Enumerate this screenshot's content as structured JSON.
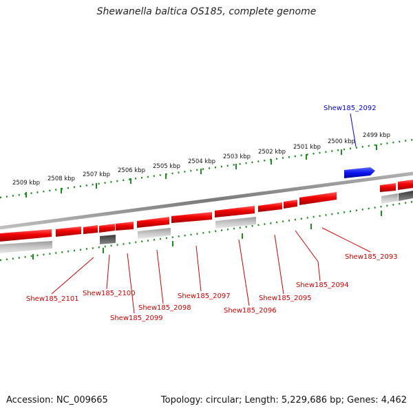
{
  "title": "Shewanella baltica OS185, complete genome",
  "footer": {
    "accession": "Accession: NC_009665",
    "summary": "Topology: circular; Length: 5,229,686 bp; Genes: 4,462"
  },
  "colors": {
    "forward_gene": "#e00000",
    "reverse_gene": "#e00000",
    "highlight_gene": "#0a14e0",
    "ticks": "#1f8a1f",
    "backbone": "#8a8a8a"
  },
  "scale_labels": [
    "2509 kbp",
    "2508 kbp",
    "2507 kbp",
    "2506 kbp",
    "2505 kbp",
    "2504 kbp",
    "2503 kbp",
    "2502 kbp",
    "2501 kbp",
    "2500 kbp",
    "2499 kbp"
  ],
  "gene_labels": {
    "top": "Shew185_2092",
    "bottom": [
      "Shew185_2101",
      "Shew185_2100",
      "Shew185_2099",
      "Shew185_2098",
      "Shew185_2097",
      "Shew185_2096",
      "Shew185_2095",
      "Shew185_2094",
      "Shew185_2093"
    ]
  }
}
